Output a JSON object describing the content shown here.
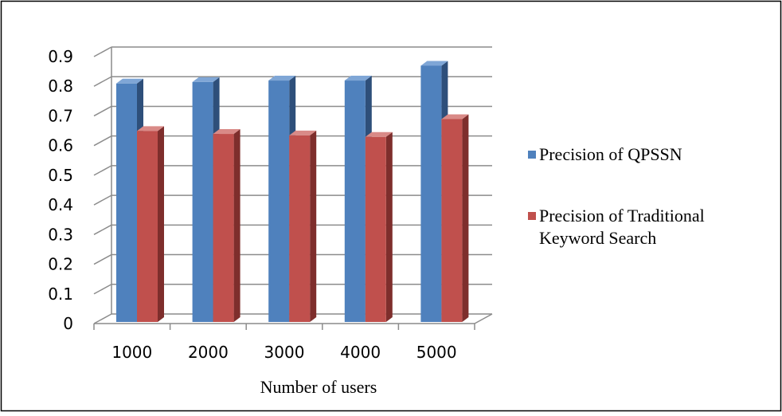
{
  "chart_data": {
    "type": "bar",
    "categories": [
      "1000",
      "2000",
      "3000",
      "4000",
      "5000"
    ],
    "series": [
      {
        "name": "Precision of QPSSN",
        "values": [
          0.82,
          0.825,
          0.83,
          0.83,
          0.88
        ]
      },
      {
        "name": "Precision of Traditional Keyword Search",
        "values": [
          0.66,
          0.65,
          0.645,
          0.64,
          0.7
        ]
      }
    ],
    "xlabel": "Number of users",
    "ylabel": "",
    "ylim": [
      0,
      0.9
    ],
    "yticks": [
      "0",
      "0.1",
      "0.2",
      "0.3",
      "0.4",
      "0.5",
      "0.6",
      "0.7",
      "0.8",
      "0.9"
    ],
    "grid": true,
    "legend": "right",
    "legend_lines": [
      [
        "Precision of QPSSN"
      ],
      [
        "Precision of Traditional",
        "Keyword Search"
      ]
    ],
    "colors": {
      "series": [
        "#4F81BD",
        "#C0504D"
      ],
      "series_top": [
        "#7FA6D6",
        "#D98A87"
      ],
      "series_side": [
        "#2E4F7A",
        "#7E2E2C"
      ],
      "grid": "#8C8C8C",
      "border": "#000000"
    }
  }
}
